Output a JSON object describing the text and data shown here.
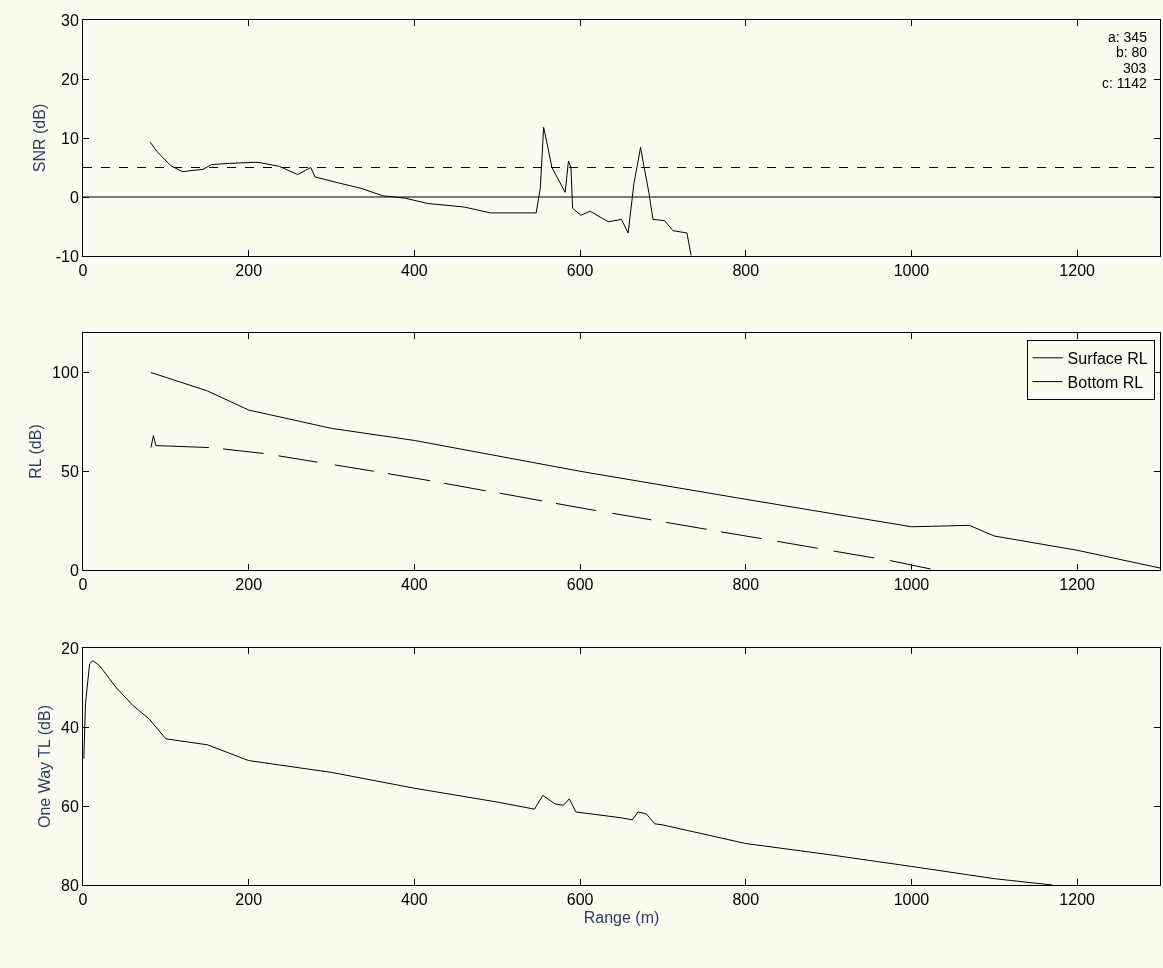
{
  "chart_data": [
    {
      "type": "line",
      "ylabel": "SNR (dB)",
      "xlim": [
        0,
        1300
      ],
      "xticks": [
        0,
        200,
        400,
        600,
        800,
        1000,
        1200
      ],
      "ylim": [
        -10,
        30
      ],
      "yticks": [
        -10,
        0,
        10,
        20,
        30
      ],
      "grid": false,
      "legend": false,
      "series": [
        {
          "color": "#000000",
          "x": [
            81,
            90,
            106,
            120,
            145,
            155,
            177,
            210,
            237,
            259,
            275,
            280,
            308,
            335,
            362,
            389,
            416,
            460,
            492,
            547,
            552,
            556,
            560,
            566,
            582,
            586,
            589,
            591,
            601,
            612,
            634,
            650,
            658,
            665,
            669,
            673,
            677,
            683,
            688,
            702,
            712,
            729,
            734
          ],
          "values": [
            9.3,
            7.6,
            5.3,
            4.3,
            4.7,
            5.5,
            5.7,
            5.9,
            5.2,
            3.8,
            5.0,
            3.4,
            2.4,
            1.5,
            0.2,
            -0.2,
            -1.1,
            -1.7,
            -2.7,
            -2.7,
            1.5,
            11.8,
            9.2,
            5.0,
            0.8,
            6.1,
            5.0,
            -1.9,
            -3.1,
            -2.4,
            -4.2,
            -3.8,
            -6.1,
            2.3,
            5.3,
            8.4,
            5.3,
            0.8,
            -3.8,
            -4.0,
            -5.7,
            -6.1,
            -9.9
          ]
        }
      ],
      "ref_lines": [
        {
          "axis": "y",
          "value": 5,
          "color": "#000000",
          "line_style": "dashed"
        },
        {
          "axis": "y",
          "value": 0,
          "color": "#000000",
          "line_style": "solid"
        }
      ],
      "annotations": [
        "a: 345",
        "b: 80",
        "303",
        "c: 1142"
      ]
    },
    {
      "type": "line",
      "ylabel": "RL (dB)",
      "xlim": [
        0,
        1300
      ],
      "xticks": [
        0,
        200,
        400,
        600,
        800,
        1000,
        1200
      ],
      "ylim": [
        0,
        120
      ],
      "yticks": [
        0,
        50,
        100
      ],
      "grid": false,
      "legend": "top right",
      "series": [
        {
          "name": "Surface RL",
          "color": "#000000",
          "x": [
            82,
            85,
            88,
            152,
            160,
            169,
            218,
            227,
            236,
            283,
            293,
            304,
            351,
            360,
            368,
            419,
            428,
            436,
            486,
            495,
            503,
            554,
            562,
            571,
            619,
            629,
            639,
            686,
            695,
            704,
            753,
            762,
            770,
            819,
            828,
            838,
            887,
            896,
            906,
            955,
            965,
            974,
            1023
          ],
          "values": [
            62,
            68,
            63,
            62,
            null,
            61.3,
            59.0,
            null,
            57.8,
            54.6,
            null,
            53.2,
            50.0,
            null,
            48.8,
            45.2,
            null,
            43.9,
            40.1,
            null,
            38.9,
            35.0,
            null,
            33.7,
            30.1,
            null,
            28.7,
            25.4,
            null,
            24.1,
            20.6,
            null,
            19.3,
            15.9,
            null,
            14.5,
            11.0,
            null,
            9.6,
            6.1,
            null,
            4.8,
            0.5
          ]
        },
        {
          "name": "Bottom RL",
          "color": "#000000",
          "x": [
            82,
            150,
            200,
            300,
            400,
            600,
            800,
            1000,
            1070,
            1100,
            1200,
            1300
          ],
          "values": [
            100,
            90.7,
            81,
            71.7,
            65.6,
            50,
            35.8,
            21.9,
            22.6,
            17.2,
            10,
            1
          ]
        }
      ]
    },
    {
      "type": "line",
      "ylabel": "One Way TL (dB)",
      "xlabel": "Range (m)",
      "xlim": [
        0,
        1300
      ],
      "xticks": [
        0,
        200,
        400,
        600,
        800,
        1000,
        1200
      ],
      "ylim": [
        80,
        20
      ],
      "yticks": [
        20,
        40,
        60,
        80
      ],
      "grid": false,
      "legend": false,
      "series": [
        {
          "color": "#000000",
          "x": [
            1,
            3,
            8,
            12,
            20,
            40,
            60,
            80,
            100,
            150,
            200,
            300,
            400,
            500,
            545,
            555,
            570,
            580,
            587,
            595,
            650,
            663,
            670,
            680,
            690,
            700,
            800,
            900,
            1000,
            1100,
            1170
          ],
          "values": [
            48,
            34,
            24,
            23.2,
            24.5,
            30,
            34.5,
            38,
            43,
            44.5,
            48.5,
            51.5,
            55.5,
            59,
            60.8,
            57.3,
            59.5,
            59.8,
            58.2,
            61.5,
            63,
            63.5,
            61.5,
            62,
            64.5,
            64.8,
            69.5,
            72.3,
            75.3,
            78.4,
            80
          ]
        }
      ]
    }
  ]
}
